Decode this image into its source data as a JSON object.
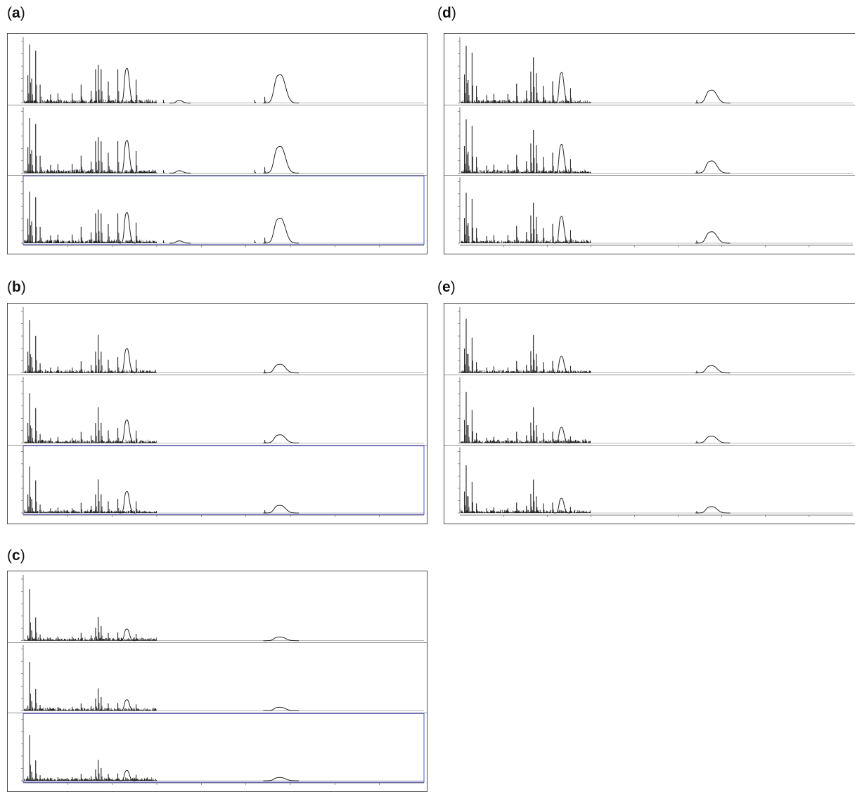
{
  "figure": {
    "panels": [
      {
        "id": "a",
        "label": "a"
      },
      {
        "id": "b",
        "label": "b"
      },
      {
        "id": "c",
        "label": "c"
      },
      {
        "id": "d",
        "label": "d"
      },
      {
        "id": "e",
        "label": "e"
      }
    ]
  },
  "colors": {
    "spectrum": "#222222",
    "frame": "#4a4a4a",
    "selected_track": "#4b55c8",
    "axis": "#555555"
  },
  "chart_data": [
    {
      "panel": "a",
      "type": "line",
      "tracks": 3,
      "selected_track": 3,
      "peak_scale": 1.0,
      "xlim": [
        2000,
        20000
      ],
      "x_ticks": [
        4000,
        6000,
        8000,
        10000,
        12000,
        14000,
        16000,
        18000
      ],
      "x_unit": "m/z",
      "peaks": [
        [
          2210,
          0.45
        ],
        [
          2290,
          0.95
        ],
        [
          2380,
          0.4
        ],
        [
          2560,
          0.85
        ],
        [
          2760,
          0.3
        ],
        [
          3230,
          0.14
        ],
        [
          3560,
          0.16
        ],
        [
          4200,
          0.16
        ],
        [
          4600,
          0.3
        ],
        [
          5050,
          0.2
        ],
        [
          5250,
          0.55
        ],
        [
          5370,
          0.62
        ],
        [
          5500,
          0.55
        ],
        [
          5820,
          0.35
        ],
        [
          6250,
          0.55
        ],
        [
          6850,
          0.12
        ],
        [
          7070,
          0.38
        ],
        [
          8300,
          0.05
        ],
        [
          12850,
          0.1
        ],
        [
          12400,
          0.05
        ]
      ],
      "broad_peaks": [
        [
          6680,
          0.55,
          90
        ],
        [
          13580,
          0.45,
          200
        ],
        [
          9050,
          0.04,
          120
        ]
      ]
    },
    {
      "panel": "b",
      "type": "line",
      "tracks": 3,
      "selected_track": 3,
      "peak_scale": 0.86,
      "xlim": [
        2000,
        20000
      ],
      "x_ticks": [
        4000,
        6000,
        8000,
        10000,
        12000,
        14000,
        16000,
        18000
      ],
      "x_unit": "m/z",
      "peaks": [
        [
          2210,
          0.4
        ],
        [
          2290,
          1.0
        ],
        [
          2380,
          0.3
        ],
        [
          2560,
          0.7
        ],
        [
          2760,
          0.18
        ],
        [
          3230,
          0.1
        ],
        [
          3560,
          0.12
        ],
        [
          4200,
          0.1
        ],
        [
          4600,
          0.22
        ],
        [
          5050,
          0.15
        ],
        [
          5250,
          0.4
        ],
        [
          5370,
          0.72
        ],
        [
          5500,
          0.4
        ],
        [
          5820,
          0.25
        ],
        [
          6250,
          0.3
        ],
        [
          6850,
          0.1
        ],
        [
          7070,
          0.25
        ],
        [
          12850,
          0.06
        ]
      ],
      "broad_peaks": [
        [
          6680,
          0.45,
          90
        ],
        [
          13580,
          0.16,
          200
        ]
      ]
    },
    {
      "panel": "c",
      "type": "line",
      "tracks": 3,
      "selected_track": 3,
      "peak_scale": 0.84,
      "xlim": [
        2000,
        20000
      ],
      "x_ticks": [
        4000,
        6000,
        8000,
        10000,
        12000,
        14000,
        16000,
        18000
      ],
      "x_unit": "m/z",
      "peaks": [
        [
          2210,
          0.1
        ],
        [
          2290,
          1.0
        ],
        [
          2380,
          0.2
        ],
        [
          2560,
          0.45
        ],
        [
          2760,
          0.12
        ],
        [
          3230,
          0.06
        ],
        [
          3560,
          0.08
        ],
        [
          4200,
          0.08
        ],
        [
          4600,
          0.15
        ],
        [
          5050,
          0.1
        ],
        [
          5250,
          0.25
        ],
        [
          5370,
          0.46
        ],
        [
          5500,
          0.28
        ],
        [
          5820,
          0.15
        ],
        [
          6250,
          0.16
        ],
        [
          7070,
          0.13
        ]
      ],
      "broad_peaks": [
        [
          6680,
          0.22,
          90
        ],
        [
          13580,
          0.07,
          200
        ]
      ]
    },
    {
      "panel": "d",
      "type": "line",
      "tracks": 3,
      "selected_track": 0,
      "peak_scale": 0.93,
      "xlim": [
        2000,
        20000
      ],
      "x_ticks": [
        4000,
        6000,
        8000,
        10000,
        12000,
        14000,
        16000,
        18000
      ],
      "x_unit": "m/z",
      "peaks": [
        [
          2210,
          0.5
        ],
        [
          2290,
          1.0
        ],
        [
          2380,
          0.4
        ],
        [
          2560,
          0.88
        ],
        [
          2760,
          0.3
        ],
        [
          3230,
          0.14
        ],
        [
          3560,
          0.16
        ],
        [
          4200,
          0.16
        ],
        [
          4600,
          0.34
        ],
        [
          5050,
          0.22
        ],
        [
          5250,
          0.55
        ],
        [
          5370,
          0.8
        ],
        [
          5500,
          0.52
        ],
        [
          5820,
          0.3
        ],
        [
          6250,
          0.38
        ],
        [
          6850,
          0.12
        ],
        [
          7070,
          0.26
        ],
        [
          12850,
          0.05
        ]
      ],
      "broad_peaks": [
        [
          6680,
          0.52,
          90
        ],
        [
          13580,
          0.22,
          200
        ]
      ]
    },
    {
      "panel": "e",
      "type": "line",
      "tracks": 3,
      "selected_track": 0,
      "peak_scale": 0.88,
      "xlim": [
        2000,
        20000
      ],
      "x_ticks": [
        4000,
        6000,
        8000,
        10000,
        12000,
        14000,
        16000,
        18000
      ],
      "x_unit": "m/z",
      "peaks": [
        [
          2210,
          0.45
        ],
        [
          2290,
          1.0
        ],
        [
          2380,
          0.35
        ],
        [
          2560,
          0.65
        ],
        [
          2760,
          0.2
        ],
        [
          3230,
          0.1
        ],
        [
          3560,
          0.12
        ],
        [
          4200,
          0.1
        ],
        [
          4600,
          0.22
        ],
        [
          5050,
          0.15
        ],
        [
          5250,
          0.4
        ],
        [
          5370,
          0.7
        ],
        [
          5500,
          0.35
        ],
        [
          5820,
          0.2
        ],
        [
          6250,
          0.22
        ],
        [
          6850,
          0.08
        ],
        [
          7070,
          0.13
        ],
        [
          12850,
          0.04
        ]
      ],
      "broad_peaks": [
        [
          6680,
          0.3,
          90
        ],
        [
          13580,
          0.13,
          200
        ]
      ]
    }
  ]
}
